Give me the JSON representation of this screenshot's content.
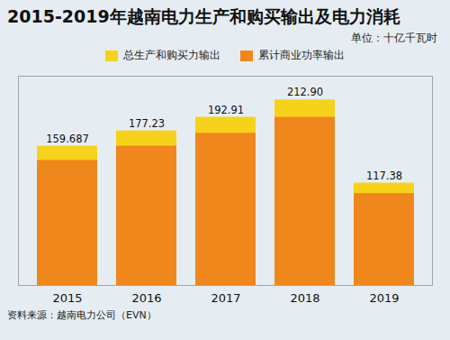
{
  "chart_data": {
    "type": "bar",
    "title": "2015-2019年越南电力生产和购买输出及电力消耗",
    "subtitle": "单位：十亿千瓦时",
    "source": "资料来源：越南电力公司（EVN）",
    "categories": [
      "2015",
      "2016",
      "2017",
      "2018",
      "2019"
    ],
    "series": [
      {
        "name": "总生产和购买力输出",
        "color": "#f6d31a",
        "values": [
          159.687,
          177.23,
          192.91,
          212.9,
          117.38
        ],
        "data_labels": true,
        "value_labels": [
          "159.687",
          "177.23",
          "192.91",
          "212.90",
          "117.38"
        ]
      },
      {
        "name": "累计商业功率输出",
        "color": "#f0871c",
        "values": [
          143.3,
          159.8,
          174.6,
          192.9,
          105.4
        ],
        "data_labels": false
      }
    ],
    "ylim": [
      0,
      240
    ],
    "tick_labels": "x",
    "legend": "top"
  }
}
